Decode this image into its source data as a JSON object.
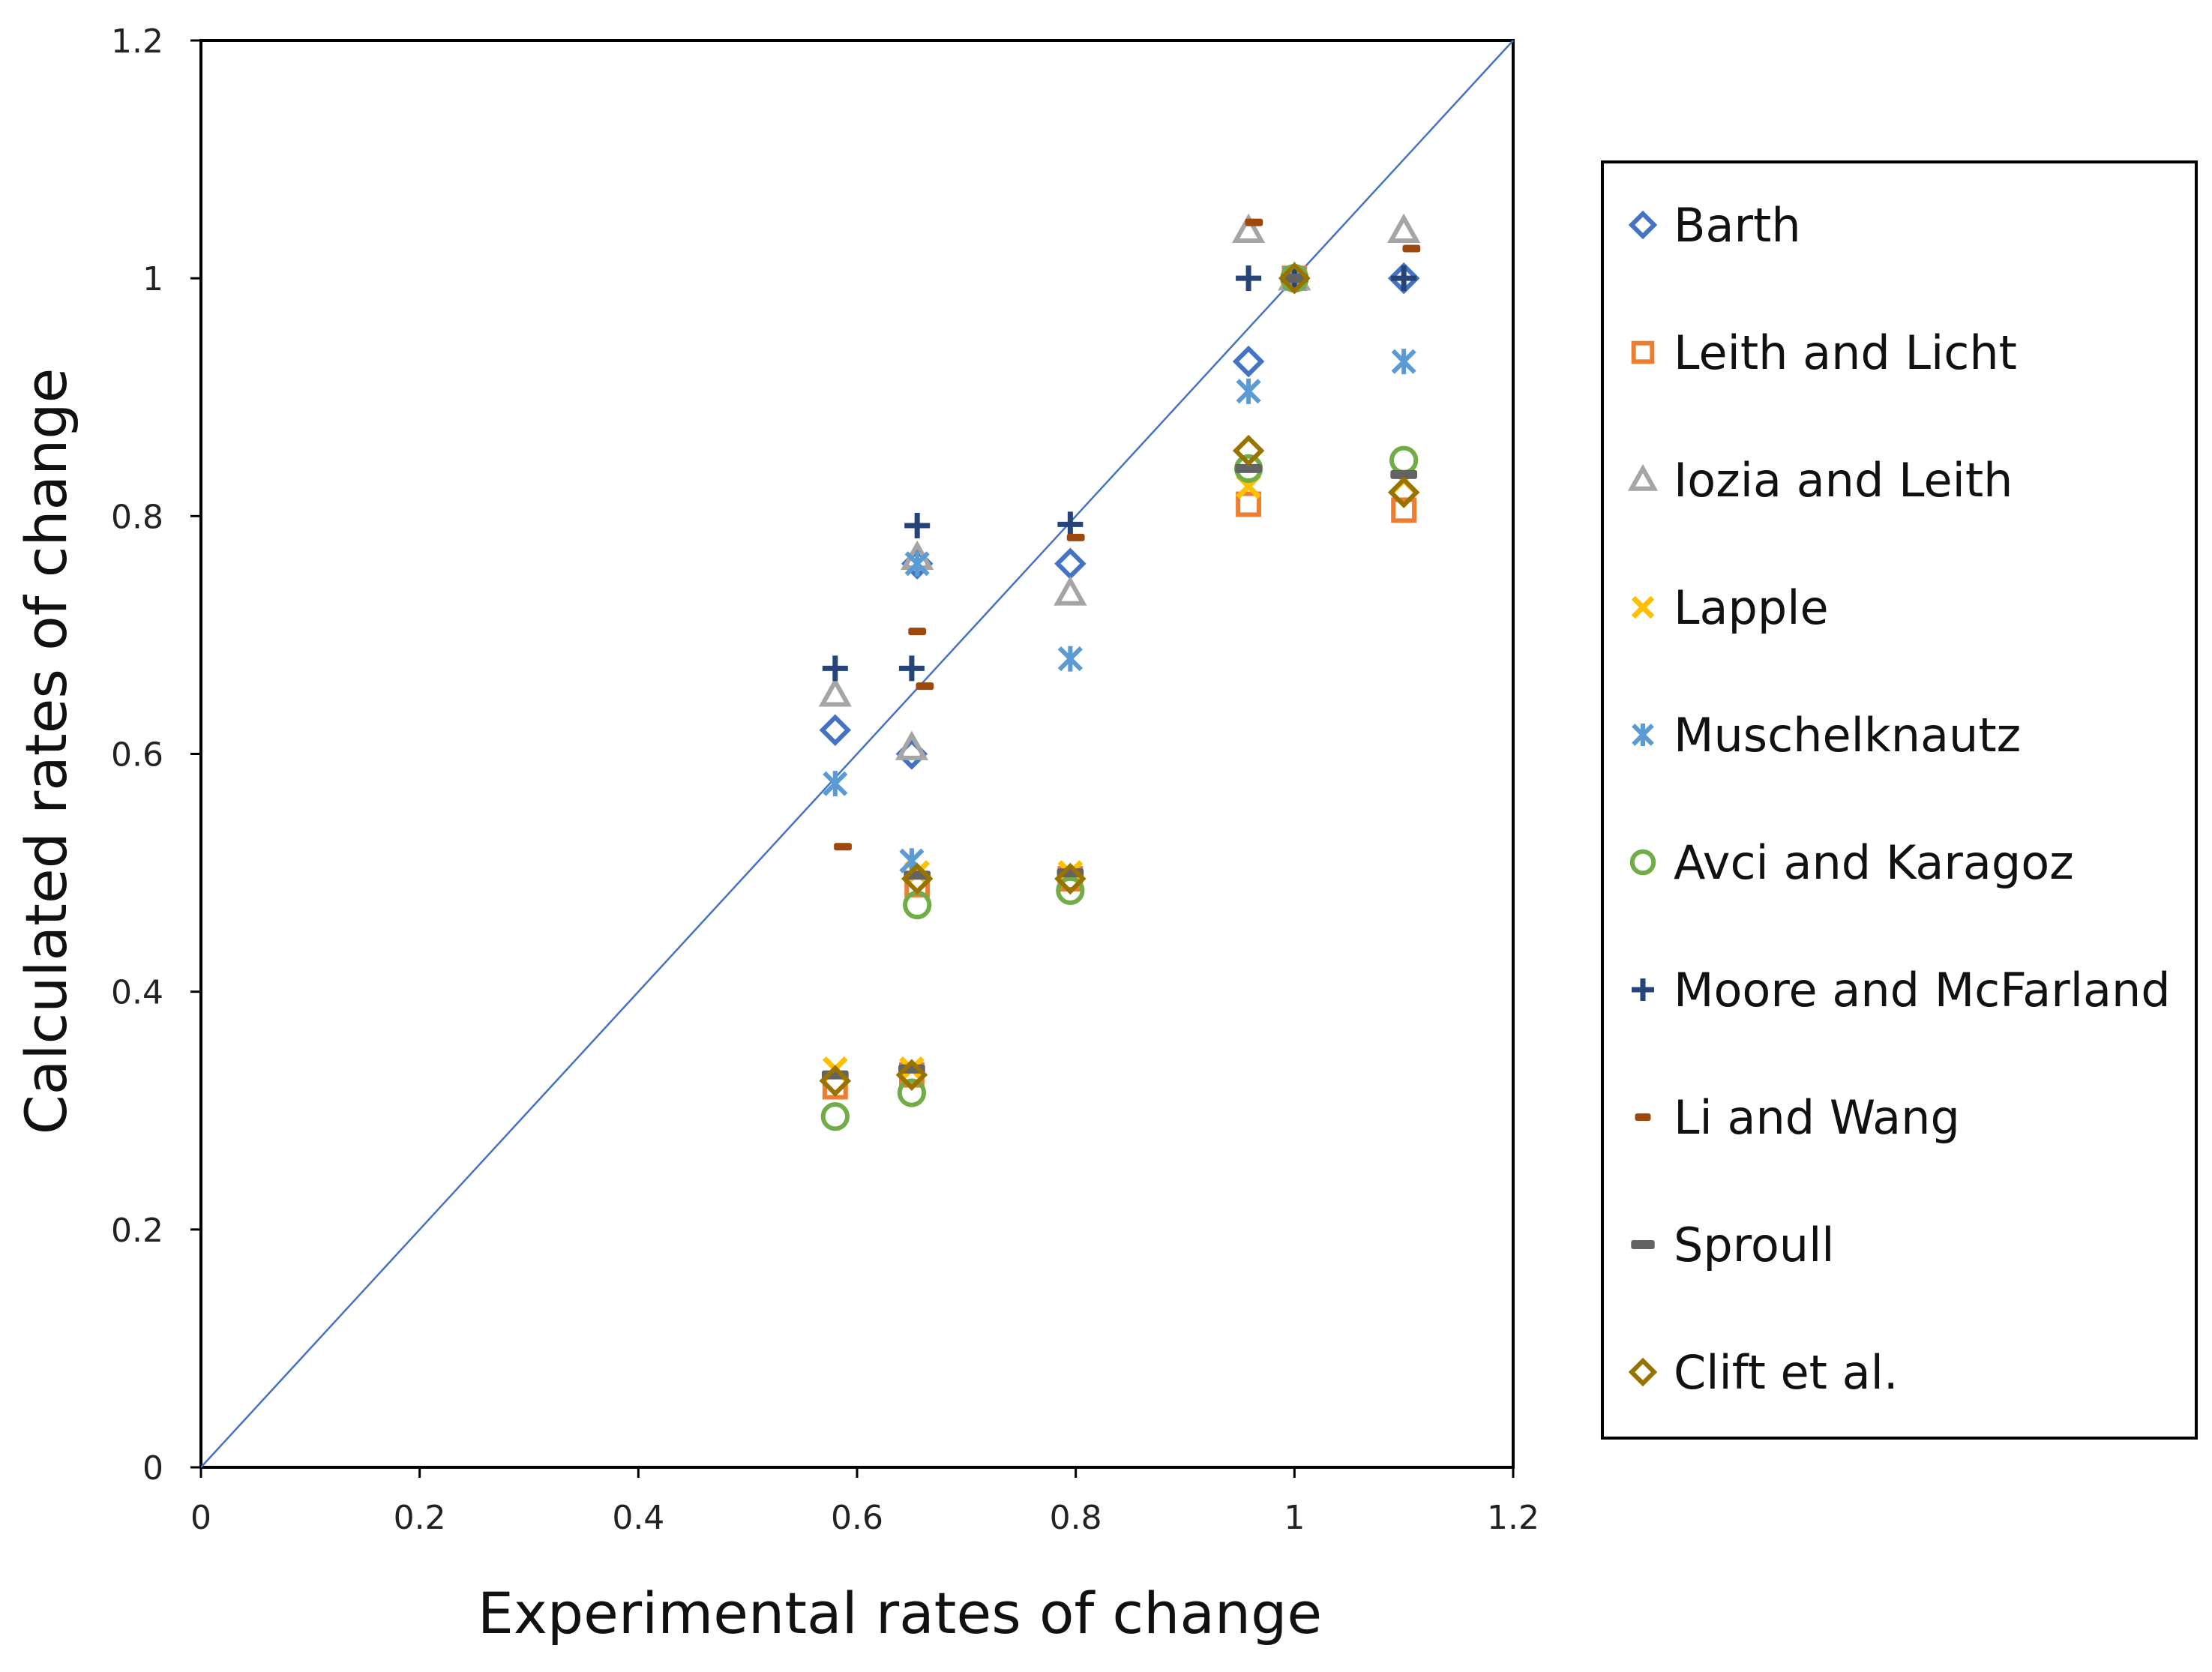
{
  "chart_data": {
    "type": "scatter",
    "title": "",
    "xlabel": "Experimental rates of change",
    "ylabel": "Calculated rates of change",
    "xlim": [
      0,
      1.2
    ],
    "ylim": [
      0,
      1.2
    ],
    "x_ticks": [
      "0",
      "0.2",
      "0.4",
      "0.6",
      "0.8",
      "1",
      "1.2"
    ],
    "y_ticks": [
      "0",
      "0.2",
      "0.4",
      "0.6",
      "0.8",
      "1",
      "1.2"
    ],
    "grid": false,
    "legend_position": "right",
    "reference_line": {
      "from": [
        0,
        0
      ],
      "to": [
        1.2,
        1.2
      ],
      "color": "#4472c4"
    },
    "series": [
      {
        "name": "Barth",
        "marker": "diamond",
        "color": "#4472c4",
        "points": [
          [
            0.58,
            0.62
          ],
          [
            0.65,
            0.6
          ],
          [
            0.655,
            0.76
          ],
          [
            0.795,
            0.76
          ],
          [
            0.958,
            0.93
          ],
          [
            1.0,
            1.0
          ],
          [
            1.1,
            1.0
          ]
        ]
      },
      {
        "name": "Leith and Licht",
        "marker": "square",
        "color": "#ed7d31",
        "points": [
          [
            0.58,
            0.32
          ],
          [
            0.65,
            0.33
          ],
          [
            0.655,
            0.49
          ],
          [
            0.795,
            0.495
          ],
          [
            0.958,
            0.81
          ],
          [
            1.0,
            1.0
          ],
          [
            1.1,
            0.805
          ]
        ]
      },
      {
        "name": "Iozia and Leith",
        "marker": "triangle",
        "color": "#a5a5a5",
        "points": [
          [
            0.58,
            0.65
          ],
          [
            0.65,
            0.605
          ],
          [
            0.655,
            0.765
          ],
          [
            0.795,
            0.735
          ],
          [
            0.958,
            1.04
          ],
          [
            1.0,
            1.0
          ],
          [
            1.1,
            1.04
          ]
        ]
      },
      {
        "name": "Lapple",
        "marker": "x",
        "color": "#ffc000",
        "points": [
          [
            0.58,
            0.335
          ],
          [
            0.65,
            0.335
          ],
          [
            0.655,
            0.5
          ],
          [
            0.795,
            0.5
          ],
          [
            0.958,
            0.825
          ],
          [
            1.0,
            1.0
          ],
          [
            1.1,
            0.83
          ]
        ]
      },
      {
        "name": "Muschelknautz",
        "marker": "asterisk",
        "color": "#5b9bd5",
        "points": [
          [
            0.58,
            0.575
          ],
          [
            0.65,
            0.51
          ],
          [
            0.655,
            0.76
          ],
          [
            0.795,
            0.68
          ],
          [
            0.958,
            0.905
          ],
          [
            1.0,
            1.0
          ],
          [
            1.1,
            0.93
          ]
        ]
      },
      {
        "name": "Avci and Karagoz",
        "marker": "circle",
        "color": "#70ad47",
        "points": [
          [
            0.58,
            0.295
          ],
          [
            0.65,
            0.315
          ],
          [
            0.655,
            0.473
          ],
          [
            0.795,
            0.485
          ],
          [
            0.958,
            0.84
          ],
          [
            1.0,
            1.0
          ],
          [
            1.1,
            0.847
          ]
        ]
      },
      {
        "name": "Moore and McFarland",
        "marker": "plus",
        "color": "#264478",
        "points": [
          [
            0.58,
            0.672
          ],
          [
            0.65,
            0.672
          ],
          [
            0.655,
            0.792
          ],
          [
            0.795,
            0.793
          ],
          [
            0.958,
            1.0
          ],
          [
            1.0,
            1.0
          ],
          [
            1.1,
            1.0
          ]
        ]
      },
      {
        "name": "Li and Wang",
        "marker": "dash",
        "color": "#9e480e",
        "points": [
          [
            0.587,
            0.522
          ],
          [
            0.655,
            0.703
          ],
          [
            0.662,
            0.657
          ],
          [
            0.8,
            0.782
          ],
          [
            0.963,
            1.047
          ],
          [
            1.0,
            1.0
          ],
          [
            1.107,
            1.025
          ]
        ]
      },
      {
        "name": "Sproull",
        "marker": "bar",
        "color": "#636363",
        "points": [
          [
            0.58,
            0.33
          ],
          [
            0.65,
            0.335
          ],
          [
            0.655,
            0.498
          ],
          [
            0.795,
            0.5
          ],
          [
            0.958,
            0.84
          ],
          [
            1.0,
            1.0
          ],
          [
            1.1,
            0.835
          ]
        ]
      },
      {
        "name": "Clift et al.",
        "marker": "diamond",
        "color": "#997300",
        "points": [
          [
            0.58,
            0.325
          ],
          [
            0.65,
            0.33
          ],
          [
            0.655,
            0.495
          ],
          [
            0.795,
            0.495
          ],
          [
            0.958,
            0.855
          ],
          [
            1.0,
            1.0
          ],
          [
            1.1,
            0.82
          ]
        ]
      }
    ]
  }
}
